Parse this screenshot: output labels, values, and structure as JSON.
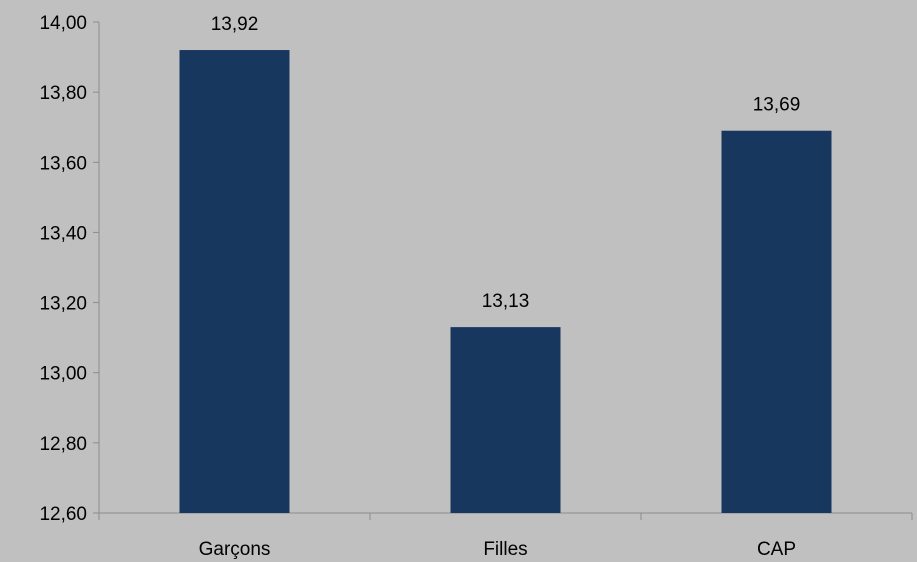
{
  "chart_data": {
    "type": "bar",
    "categories": [
      "Garçons",
      "Filles",
      "CAP"
    ],
    "values": [
      13.92,
      13.13,
      13.69
    ],
    "data_labels": [
      "13,92",
      "13,13",
      "13,69"
    ],
    "title": "",
    "xlabel": "",
    "ylabel": "",
    "ylim": [
      12.6,
      14.0
    ],
    "y_ticks": [
      12.6,
      12.8,
      13.0,
      13.2,
      13.4,
      13.6,
      13.8,
      14.0
    ],
    "y_tick_labels": [
      "12,60",
      "12,80",
      "13,00",
      "13,20",
      "13,40",
      "13,60",
      "13,80",
      "14,00"
    ],
    "grid": false,
    "legend": "none",
    "colors": {
      "bar": "#17375e",
      "background": "#c0c0c0",
      "axis": "#8c8c8c",
      "text": "#000000"
    }
  }
}
